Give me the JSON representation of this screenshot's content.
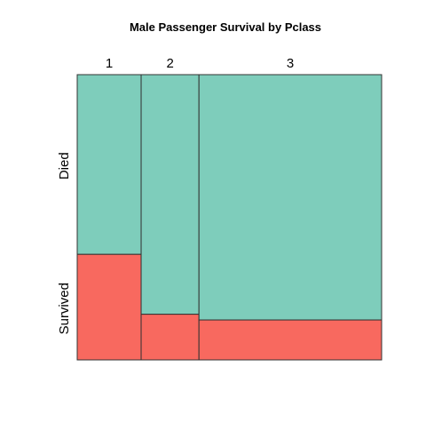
{
  "chart_data": {
    "type": "mosaic",
    "title": "Male Passenger Survival by Pclass",
    "xlabel": "",
    "ylabel": "",
    "categories": [
      "1",
      "2",
      "3"
    ],
    "column_proportions": [
      0.21,
      0.19,
      0.6
    ],
    "rows": [
      "Died",
      "Survived"
    ],
    "series": [
      {
        "name": "Died",
        "values": [
          0.63,
          0.84,
          0.86
        ]
      },
      {
        "name": "Survived",
        "values": [
          0.37,
          0.16,
          0.14
        ]
      }
    ],
    "colors": {
      "Died": "#7ecdbb",
      "Survived": "#f8695f"
    },
    "legend": "none",
    "grid": false
  }
}
